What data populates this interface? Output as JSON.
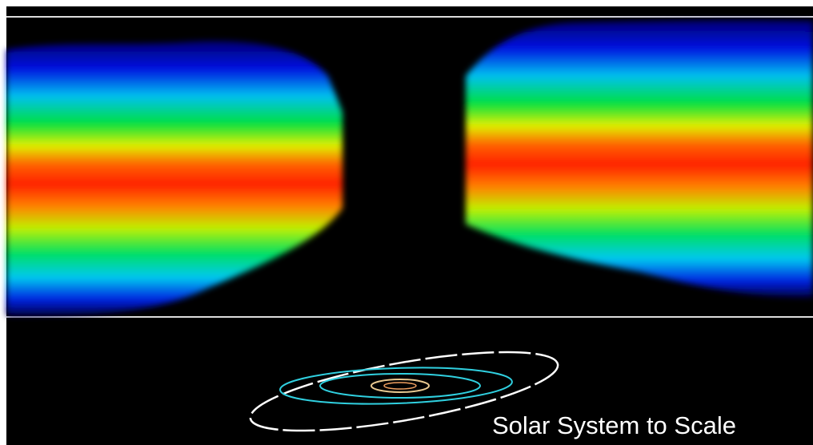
{
  "caption": "Solar System to Scale"
}
